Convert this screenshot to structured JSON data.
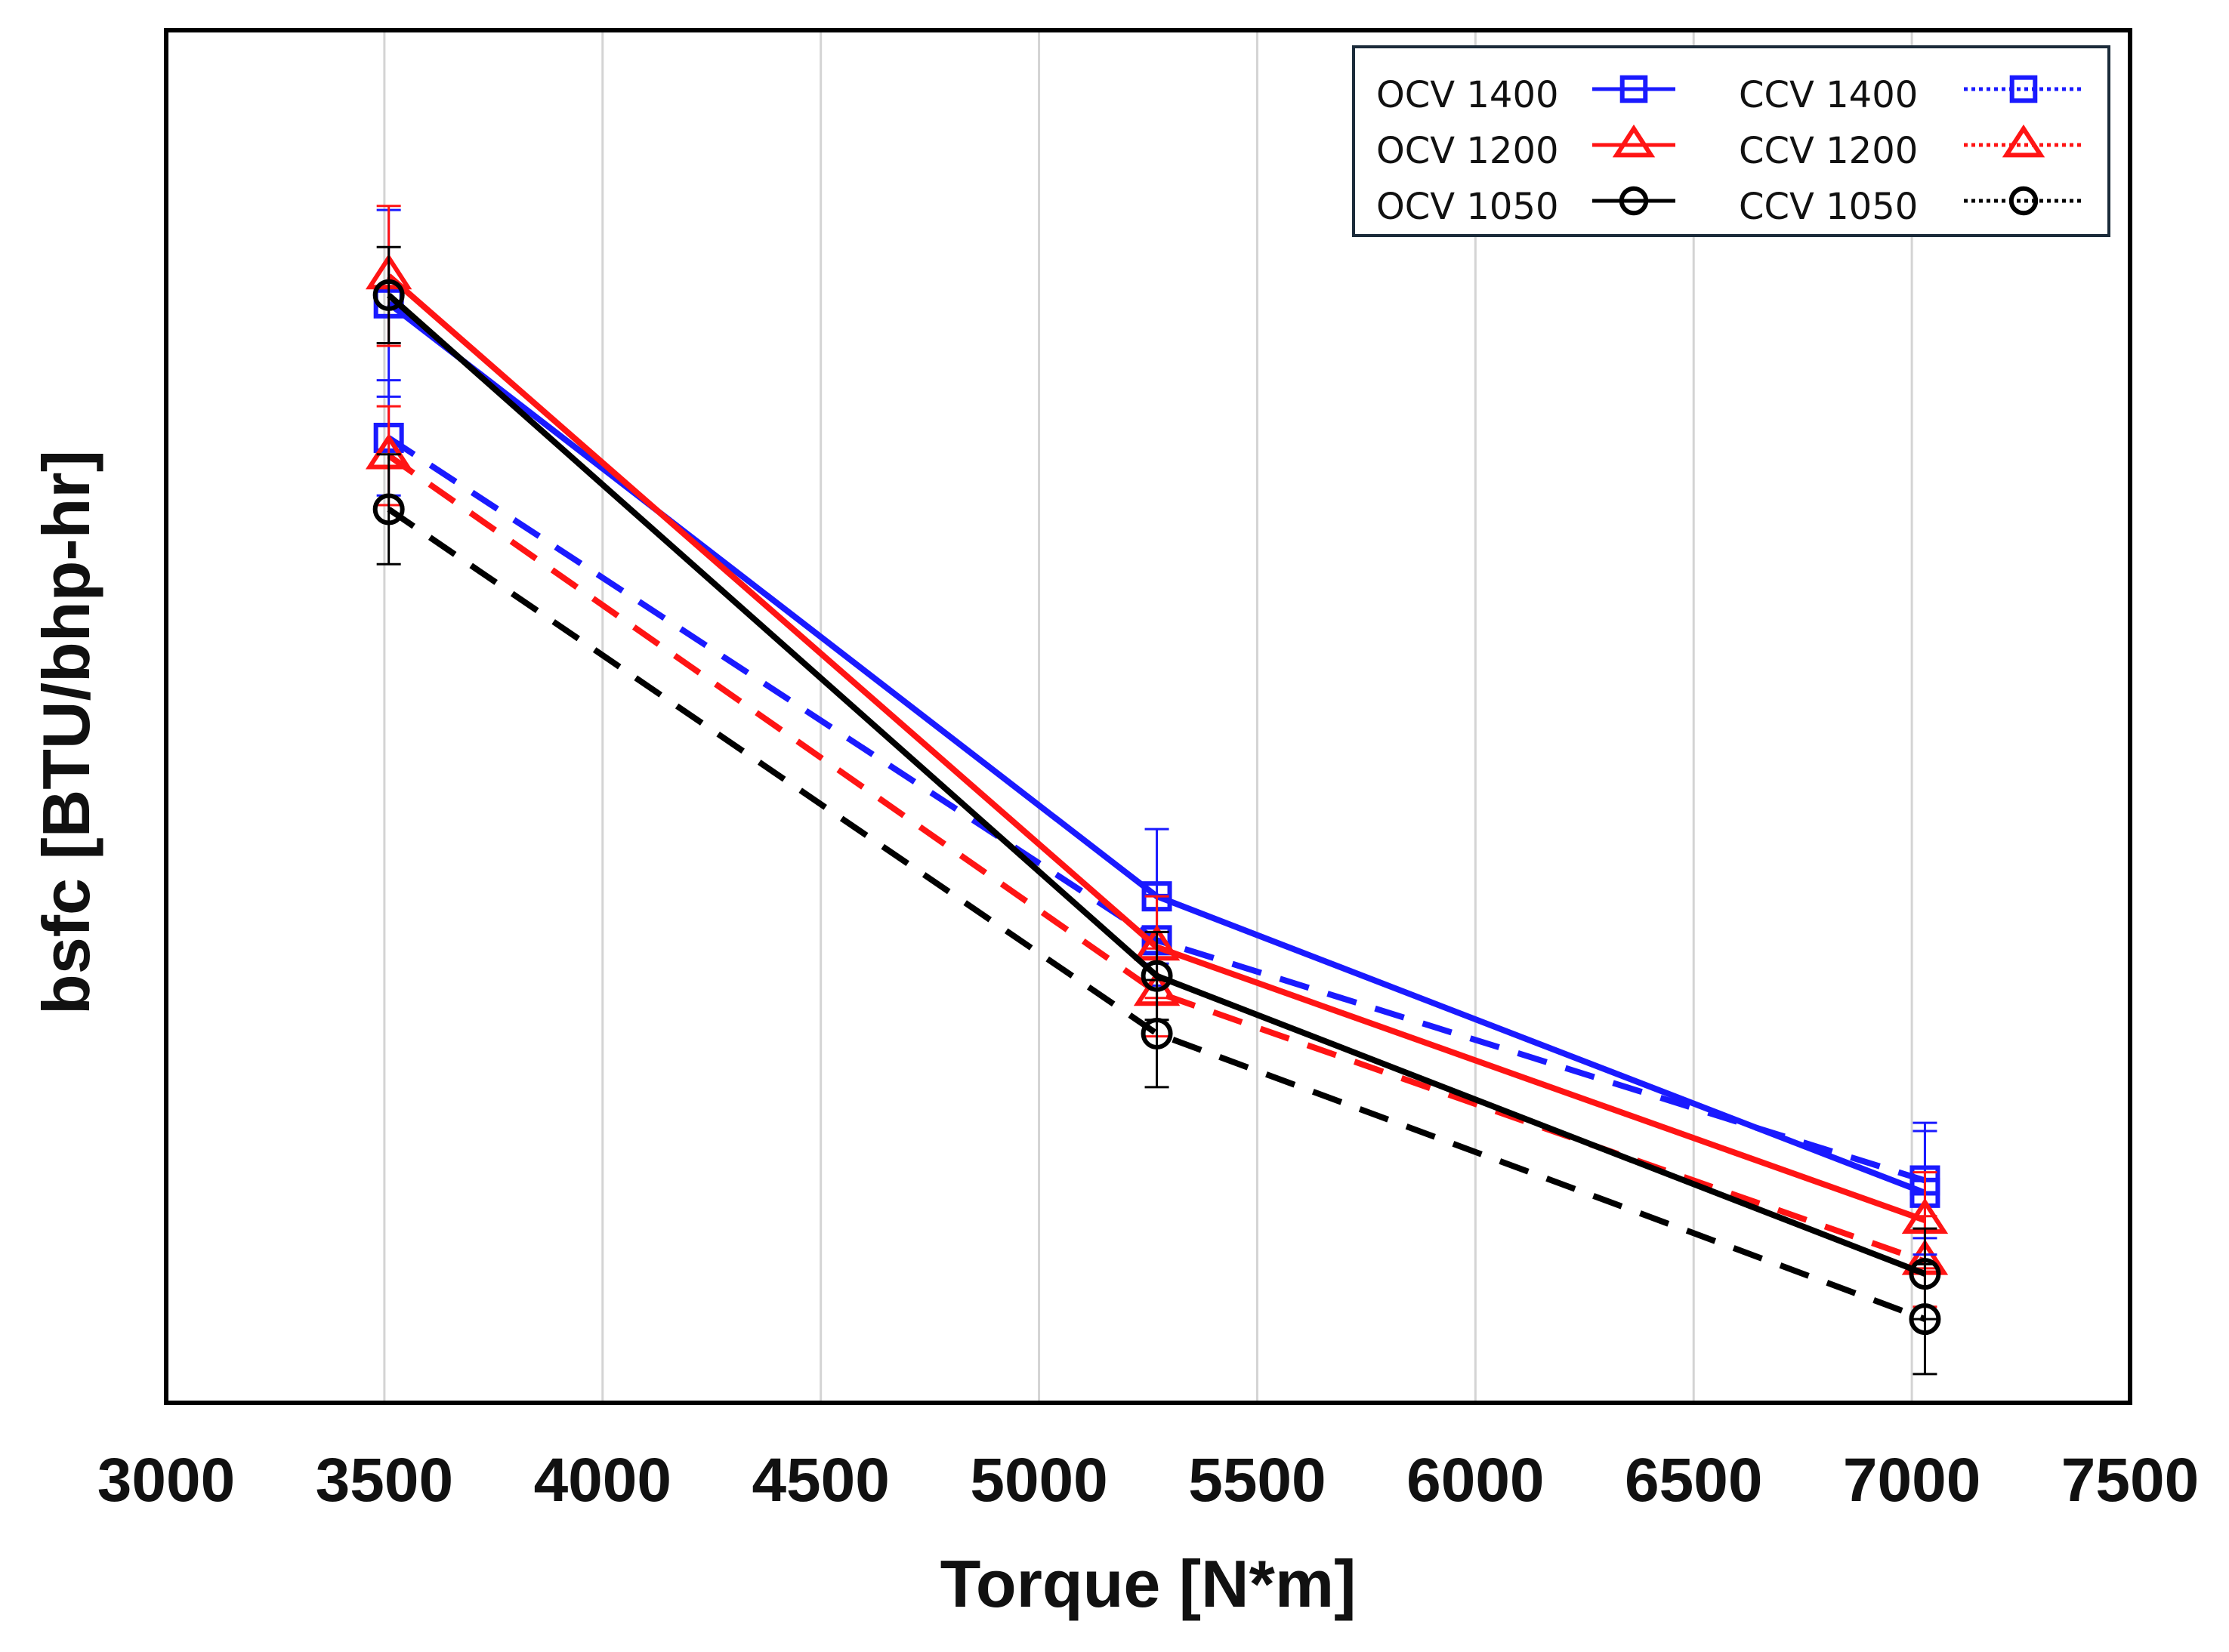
{
  "chart_data": {
    "type": "line",
    "title": "",
    "xlabel": "Torque [N*m]",
    "ylabel": "bsfc [BTU/bhp-hr]",
    "xlim": [
      3000,
      7500
    ],
    "ylim": [
      0,
      100
    ],
    "x_ticks": [
      3000,
      3500,
      4000,
      4500,
      5000,
      5500,
      6000,
      6500,
      7000,
      7500
    ],
    "y_ticks_shown": false,
    "grid": "vertical",
    "legend_position": "top-right",
    "x": [
      3510,
      5270,
      7030
    ],
    "series": [
      {
        "name": "OCV 1400",
        "color": "#1a1aff",
        "marker": "square",
        "line": "solid",
        "values": [
          80.1,
          36.9,
          15.3
        ],
        "error": [
          6.8,
          4.9,
          4.5
        ]
      },
      {
        "name": "OCV 1200",
        "color": "#ff1414",
        "marker": "triangle",
        "line": "solid",
        "values": [
          82.1,
          33.2,
          13.3
        ],
        "error": [
          5.1,
          3.7,
          3.5
        ]
      },
      {
        "name": "OCV 1050",
        "color": "#000000",
        "marker": "circle",
        "line": "solid",
        "values": [
          80.7,
          31.1,
          9.4
        ],
        "error": [
          3.5,
          3.2,
          3.3
        ]
      },
      {
        "name": "CCV 1400",
        "color": "#1a1aff",
        "marker": "square",
        "line": "dashed",
        "values": [
          70.3,
          33.7,
          16.2
        ],
        "error": [
          4.2,
          3.3,
          4.2
        ]
      },
      {
        "name": "CCV 1200",
        "color": "#ff1414",
        "marker": "triangle",
        "line": "dashed",
        "values": [
          69.0,
          29.9,
          10.3
        ],
        "error": [
          3.6,
          3.2,
          3.3
        ]
      },
      {
        "name": "CCV 1050",
        "color": "#000000",
        "marker": "circle",
        "line": "dashed",
        "values": [
          65.1,
          26.9,
          6.1
        ],
        "error": [
          4.0,
          3.9,
          4.0
        ]
      }
    ]
  }
}
